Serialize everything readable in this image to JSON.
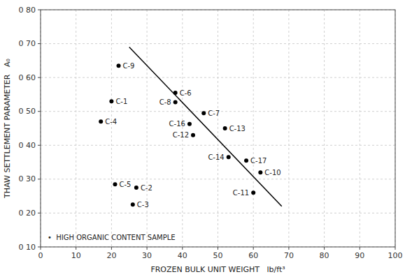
{
  "chart_data": {
    "type": "scatter",
    "xlabel": "FROZEN BULK UNIT WEIGHT   lb/ft³",
    "ylabel": "THAW SETTLEMENT PARAMETER   A₀",
    "xlim": [
      0,
      100
    ],
    "ylim": [
      0.1,
      0.8
    ],
    "xticks": [
      0,
      10,
      20,
      30,
      40,
      50,
      60,
      70,
      80,
      90,
      100
    ],
    "yticks": [
      {
        "value": 0.1,
        "label": "0 10"
      },
      {
        "value": 0.2,
        "label": "0 20"
      },
      {
        "value": 0.3,
        "label": "0 30"
      },
      {
        "value": 0.4,
        "label": "0 40"
      },
      {
        "value": 0.5,
        "label": "0 50"
      },
      {
        "value": 0.6,
        "label": "0 60"
      },
      {
        "value": 0.7,
        "label": "0 70"
      },
      {
        "value": 0.8,
        "label": "0 80"
      }
    ],
    "grid": true,
    "annotations": [
      "•  HIGH ORGANIC CONTENT SAMPLE"
    ],
    "series": [
      {
        "type": "scatter",
        "color": "black",
        "marker": "dot",
        "labels": [
          "C-9",
          "C-1",
          "C-4",
          "C-6",
          "C-8",
          "C-7",
          "C-16",
          "C-12",
          "C-13",
          "C-14",
          "C-17",
          "C-10",
          "C-11",
          "C-5",
          "C-2",
          "C-3"
        ],
        "x": [
          22,
          20,
          17,
          38,
          38,
          46,
          42,
          43,
          52,
          53,
          58,
          62,
          60,
          21,
          27,
          26
        ],
        "values": [
          0.635,
          0.53,
          0.47,
          0.555,
          0.527,
          0.495,
          0.463,
          0.43,
          0.45,
          0.365,
          0.355,
          0.32,
          0.26,
          0.285,
          0.275,
          0.225
        ]
      },
      {
        "type": "line",
        "color": "black",
        "line_style": "solid",
        "x": [
          25,
          68
        ],
        "values": [
          0.69,
          0.22
        ]
      }
    ]
  }
}
